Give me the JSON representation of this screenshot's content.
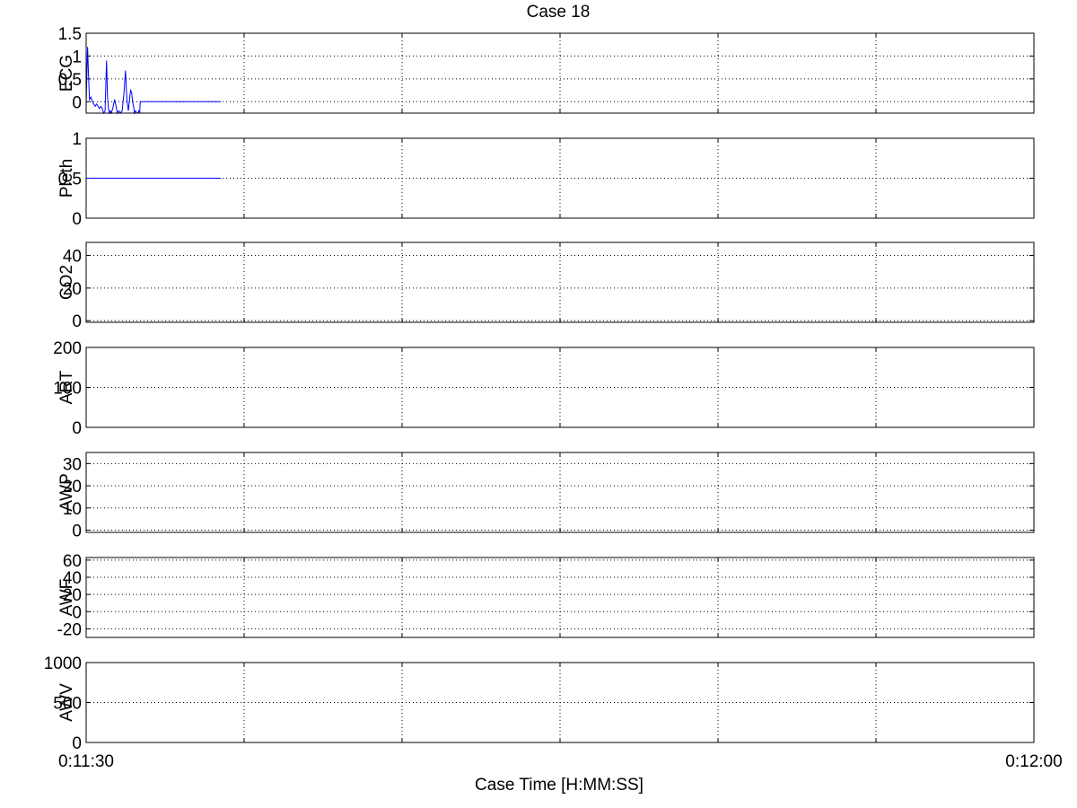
{
  "title": "Case 18",
  "xlabel": "Case Time [H:MM:SS]",
  "x_tick_labels": [
    "0:11:30",
    "0:12:00"
  ],
  "chart_data": [
    {
      "type": "line",
      "ylabel": "ECG",
      "ylim": [
        -0.25,
        1.5
      ],
      "yticks": [
        0,
        0.5,
        1,
        1.5
      ],
      "xlim": [
        0,
        1
      ],
      "grid": true,
      "series": [
        {
          "color": "#0000ff",
          "x": [
            0.0,
            0.0015,
            0.0025,
            0.0035,
            0.005,
            0.0065,
            0.008,
            0.0095,
            0.011,
            0.0125,
            0.014,
            0.0155,
            0.017,
            0.0185,
            0.02,
            0.0215,
            0.0225,
            0.0235,
            0.0245,
            0.0255,
            0.0265,
            0.028,
            0.03,
            0.0315,
            0.033,
            0.0345,
            0.036,
            0.038,
            0.04,
            0.0415,
            0.043,
            0.0445,
            0.046,
            0.047,
            0.048,
            0.049,
            0.05,
            0.051,
            0.052,
            0.0535,
            0.0545,
            0.0555,
            0.0565,
            0.057,
            0.0575,
            0.058,
            0.06,
            0.07,
            0.09,
            0.11,
            0.13,
            0.142
          ],
          "y": [
            0.0,
            1.2,
            0.6,
            0.05,
            0.1,
            0.0,
            -0.05,
            -0.1,
            -0.05,
            -0.1,
            -0.15,
            -0.1,
            -0.15,
            -0.25,
            -0.2,
            0.9,
            0.1,
            -0.15,
            -0.25,
            -0.2,
            -0.25,
            -0.15,
            0.05,
            -0.1,
            -0.25,
            -0.2,
            -0.25,
            -0.2,
            0.2,
            0.68,
            0.05,
            -0.2,
            0.1,
            0.25,
            0.2,
            0.0,
            -0.1,
            -0.25,
            -0.2,
            -0.25,
            -0.25,
            -0.2,
            -0.25,
            0.0,
            0.0,
            0.0,
            0.0,
            0.0,
            0.0,
            0.0,
            0.0,
            0.0
          ]
        }
      ]
    },
    {
      "type": "line",
      "ylabel": "Pleth",
      "ylim": [
        0,
        1
      ],
      "yticks": [
        0,
        0.5,
        1
      ],
      "xlim": [
        0,
        1
      ],
      "grid": true,
      "series": [
        {
          "color": "#0000ff",
          "x": [
            0.0,
            0.142
          ],
          "y": [
            0.5,
            0.5
          ]
        }
      ]
    },
    {
      "type": "line",
      "ylabel": "CO2",
      "ylim": [
        -1,
        48
      ],
      "yticks": [
        0,
        20,
        40
      ],
      "xlim": [
        0,
        1
      ],
      "grid": true,
      "series": []
    },
    {
      "type": "line",
      "ylabel": "ART",
      "ylim": [
        0,
        200
      ],
      "yticks": [
        0,
        100,
        200
      ],
      "xlim": [
        0,
        1
      ],
      "grid": true,
      "series": []
    },
    {
      "type": "line",
      "ylabel": "AWP",
      "ylim": [
        -1,
        35
      ],
      "yticks": [
        0,
        10,
        20,
        30
      ],
      "xlim": [
        0,
        1
      ],
      "grid": true,
      "series": []
    },
    {
      "type": "line",
      "ylabel": "AWF",
      "ylim": [
        -30,
        63
      ],
      "yticks": [
        -20,
        0,
        20,
        40,
        60
      ],
      "xlim": [
        0,
        1
      ],
      "grid": true,
      "series": []
    },
    {
      "type": "line",
      "ylabel": "AWV",
      "ylim": [
        0,
        1000
      ],
      "yticks": [
        0,
        500,
        1000
      ],
      "xlim": [
        0,
        1
      ],
      "grid": true,
      "series": []
    }
  ]
}
